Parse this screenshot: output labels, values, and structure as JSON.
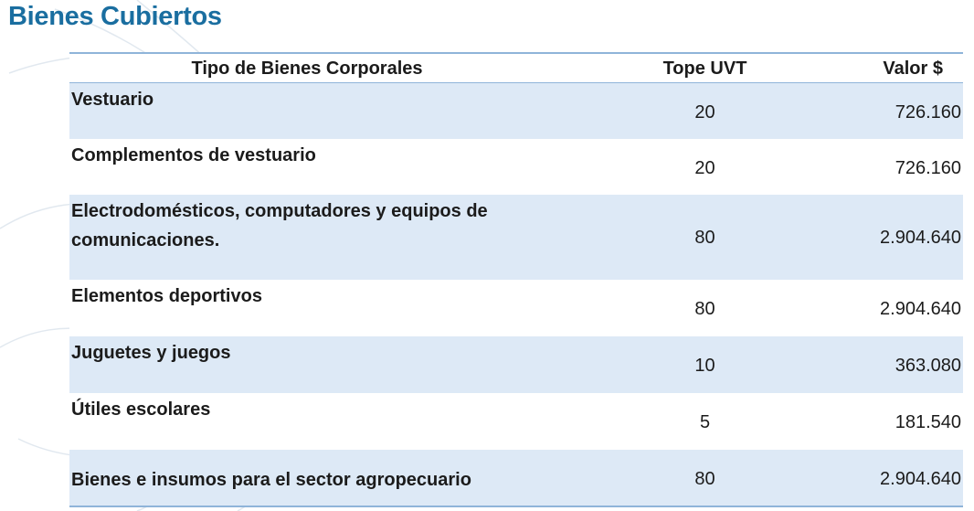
{
  "title": "Bienes Cubiertos",
  "table": {
    "headers": {
      "tipo": "Tipo de Bienes Corporales",
      "tope": "Tope UVT",
      "valor": "Valor $"
    },
    "rows": [
      {
        "tipo": "Vestuario",
        "tope": "20",
        "valor": "726.160"
      },
      {
        "tipo": "Complementos de vestuario",
        "tope": "20",
        "valor": "726.160"
      },
      {
        "tipo_line1": "Electrodomésticos, computadores y equipos de",
        "tipo_line2": "comunicaciones.",
        "tope": "80",
        "valor": "2.904.640"
      },
      {
        "tipo": "Elementos deportivos",
        "tope": "80",
        "valor": "2.904.640"
      },
      {
        "tipo": "Juguetes y juegos",
        "tope": "10",
        "valor": "363.080"
      },
      {
        "tipo": "Útiles escolares",
        "tope": "5",
        "valor": "181.540"
      },
      {
        "tipo": "Bienes e insumos para el sector agropecuario",
        "tope": "80",
        "valor": "2.904.640"
      }
    ]
  },
  "colors": {
    "title": "#1a6ea0",
    "row_shade": "#dde9f6",
    "rule": "#8fb4d9",
    "text": "#1b1b1b"
  }
}
